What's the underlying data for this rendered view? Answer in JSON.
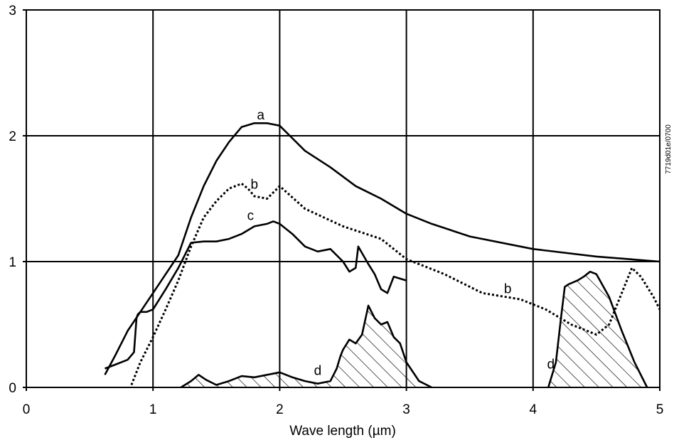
{
  "chart_data": {
    "type": "line",
    "title": "",
    "xlabel": "Wave length (µm)",
    "ylabel": "",
    "xlim": [
      0,
      5
    ],
    "ylim": [
      0,
      3
    ],
    "x_ticks": [
      "0",
      "1",
      "2",
      "3",
      "4",
      "5"
    ],
    "y_ticks": [
      "0",
      "1",
      "2",
      "3"
    ],
    "grid": true,
    "figure_code": "7719d01e/0700",
    "colors": {
      "line": "#000000",
      "background": "#ffffff"
    },
    "series": [
      {
        "name": "a",
        "style": "solid",
        "x": [
          0.62,
          0.7,
          0.8,
          0.9,
          1.0,
          1.1,
          1.2,
          1.3,
          1.4,
          1.5,
          1.6,
          1.7,
          1.8,
          1.9,
          2.0,
          2.1,
          2.2,
          2.4,
          2.6,
          2.8,
          3.0,
          3.2,
          3.5,
          4.0,
          4.5,
          5.0
        ],
        "y": [
          0.1,
          0.25,
          0.45,
          0.6,
          0.75,
          0.9,
          1.05,
          1.35,
          1.6,
          1.8,
          1.95,
          2.07,
          2.1,
          2.1,
          2.08,
          1.98,
          1.88,
          1.75,
          1.6,
          1.5,
          1.38,
          1.3,
          1.2,
          1.1,
          1.04,
          1.0
        ]
      },
      {
        "name": "b",
        "style": "dotted",
        "x": [
          0.83,
          0.9,
          1.0,
          1.1,
          1.2,
          1.3,
          1.4,
          1.5,
          1.6,
          1.7,
          1.75,
          1.8,
          1.9,
          2.0,
          2.2,
          2.5,
          2.8,
          3.0,
          3.3,
          3.6,
          3.9,
          4.1,
          4.3,
          4.5,
          4.6,
          4.7,
          4.78,
          4.85,
          4.95,
          5.0
        ],
        "y": [
          0.02,
          0.2,
          0.4,
          0.62,
          0.85,
          1.12,
          1.35,
          1.48,
          1.58,
          1.62,
          1.58,
          1.52,
          1.5,
          1.6,
          1.42,
          1.28,
          1.18,
          1.02,
          0.9,
          0.75,
          0.7,
          0.62,
          0.5,
          0.42,
          0.5,
          0.75,
          0.95,
          0.88,
          0.72,
          0.62
        ]
      },
      {
        "name": "c",
        "style": "solid",
        "x": [
          0.62,
          0.7,
          0.8,
          0.85,
          0.87,
          0.88,
          0.9,
          0.95,
          1.0,
          1.1,
          1.2,
          1.3,
          1.4,
          1.5,
          1.6,
          1.7,
          1.8,
          1.9,
          1.95,
          2.0,
          2.1,
          2.2,
          2.3,
          2.4,
          2.5,
          2.55,
          2.6,
          2.62,
          2.7,
          2.75,
          2.8,
          2.85,
          2.9,
          3.0
        ],
        "y": [
          0.15,
          0.18,
          0.22,
          0.28,
          0.55,
          0.58,
          0.6,
          0.6,
          0.62,
          0.78,
          0.95,
          1.15,
          1.16,
          1.16,
          1.18,
          1.22,
          1.28,
          1.3,
          1.32,
          1.3,
          1.22,
          1.12,
          1.08,
          1.1,
          1.0,
          0.92,
          0.95,
          1.12,
          0.98,
          0.9,
          0.78,
          0.75,
          0.88,
          0.85
        ]
      },
      {
        "name": "d",
        "style": "hatched",
        "segments": [
          {
            "x": [
              1.22,
              1.3,
              1.36,
              1.42,
              1.5,
              1.6,
              1.7,
              1.8,
              1.9,
              2.0,
              2.1,
              2.2,
              2.3,
              2.4,
              2.45,
              2.48,
              2.5,
              2.55,
              2.6,
              2.65,
              2.7,
              2.75,
              2.8,
              2.85,
              2.9,
              2.95,
              3.0,
              3.1,
              3.2
            ],
            "y": [
              0.0,
              0.05,
              0.1,
              0.06,
              0.02,
              0.05,
              0.09,
              0.08,
              0.1,
              0.12,
              0.08,
              0.05,
              0.03,
              0.05,
              0.15,
              0.25,
              0.3,
              0.38,
              0.35,
              0.42,
              0.65,
              0.55,
              0.5,
              0.52,
              0.4,
              0.35,
              0.2,
              0.05,
              0.0
            ]
          },
          {
            "x": [
              4.12,
              4.18,
              4.22,
              4.25,
              4.28,
              4.35,
              4.4,
              4.45,
              4.5,
              4.6,
              4.7,
              4.8,
              4.9
            ],
            "y": [
              0.0,
              0.2,
              0.55,
              0.8,
              0.82,
              0.85,
              0.88,
              0.92,
              0.9,
              0.72,
              0.45,
              0.2,
              0.0
            ]
          }
        ]
      }
    ],
    "annotations": [
      {
        "text": "a",
        "x": 1.85,
        "y": 2.13
      },
      {
        "text": "b",
        "x": 1.8,
        "y": 1.58
      },
      {
        "text": "c",
        "x": 1.77,
        "y": 1.33
      },
      {
        "text": "b",
        "x": 3.8,
        "y": 0.75
      },
      {
        "text": "d",
        "x": 2.3,
        "y": 0.1
      },
      {
        "text": "d",
        "x": 4.14,
        "y": 0.15
      }
    ]
  }
}
